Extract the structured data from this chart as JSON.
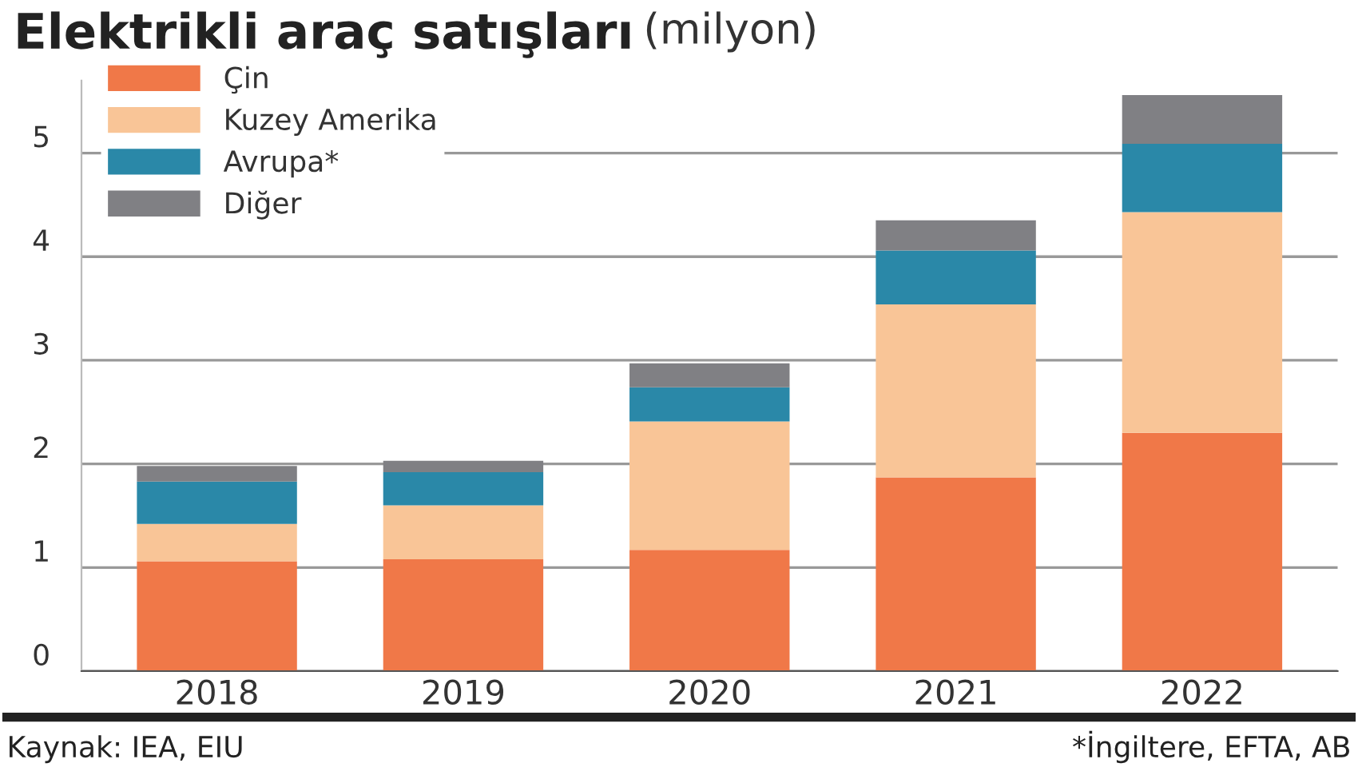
{
  "chart_data": {
    "type": "bar",
    "stacked": true,
    "title": "Elektrikli araç satışları",
    "subtitle": "(milyon)",
    "categories": [
      "2018",
      "2019",
      "2020",
      "2021",
      "2022"
    ],
    "series": [
      {
        "name": "Çin",
        "color": "#f07848",
        "values": [
          1.06,
          1.08,
          1.17,
          1.87,
          2.3
        ]
      },
      {
        "name": "Kuzey Amerika",
        "color": "#f9c597",
        "values": [
          0.36,
          0.52,
          1.24,
          1.67,
          2.13
        ]
      },
      {
        "name": "Avrupa*",
        "color": "#2a88a8",
        "values": [
          0.41,
          0.32,
          0.33,
          0.52,
          0.66
        ]
      },
      {
        "name": "Diğer",
        "color": "#808084",
        "values": [
          0.15,
          0.11,
          0.23,
          0.29,
          0.47
        ]
      }
    ],
    "ylim": [
      0,
      5.7
    ],
    "yticks": [
      0,
      1,
      2,
      3,
      4,
      5
    ],
    "grid": "y",
    "legend": "top left",
    "annotations": [
      "Kaynak: IEA, EIU",
      "*İngiltere, EFTA, AB"
    ]
  }
}
